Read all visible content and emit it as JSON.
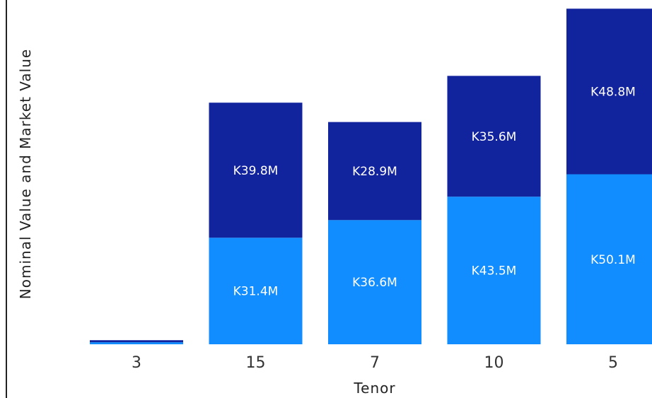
{
  "chart_data": {
    "type": "bar",
    "stacked": true,
    "title": "",
    "xlabel": "Tenor",
    "ylabel": "Nominal Value and Market Value",
    "categories": [
      "3",
      "15",
      "7",
      "10",
      "5"
    ],
    "series": [
      {
        "color": "#118dff",
        "values": [
          0.6,
          31.4,
          36.6,
          43.5,
          50.1
        ],
        "labels": [
          "",
          "K31.4M",
          "K36.6M",
          "K43.5M",
          "K50.1M"
        ]
      },
      {
        "color": "#12239e",
        "values": [
          0.6,
          39.8,
          28.9,
          35.6,
          48.8
        ],
        "labels": [
          "",
          "K39.8M",
          "K28.9M",
          "K35.6M",
          "K48.8M"
        ]
      }
    ],
    "ylim": [
      0,
      100
    ],
    "grid": false,
    "legend": "none"
  }
}
